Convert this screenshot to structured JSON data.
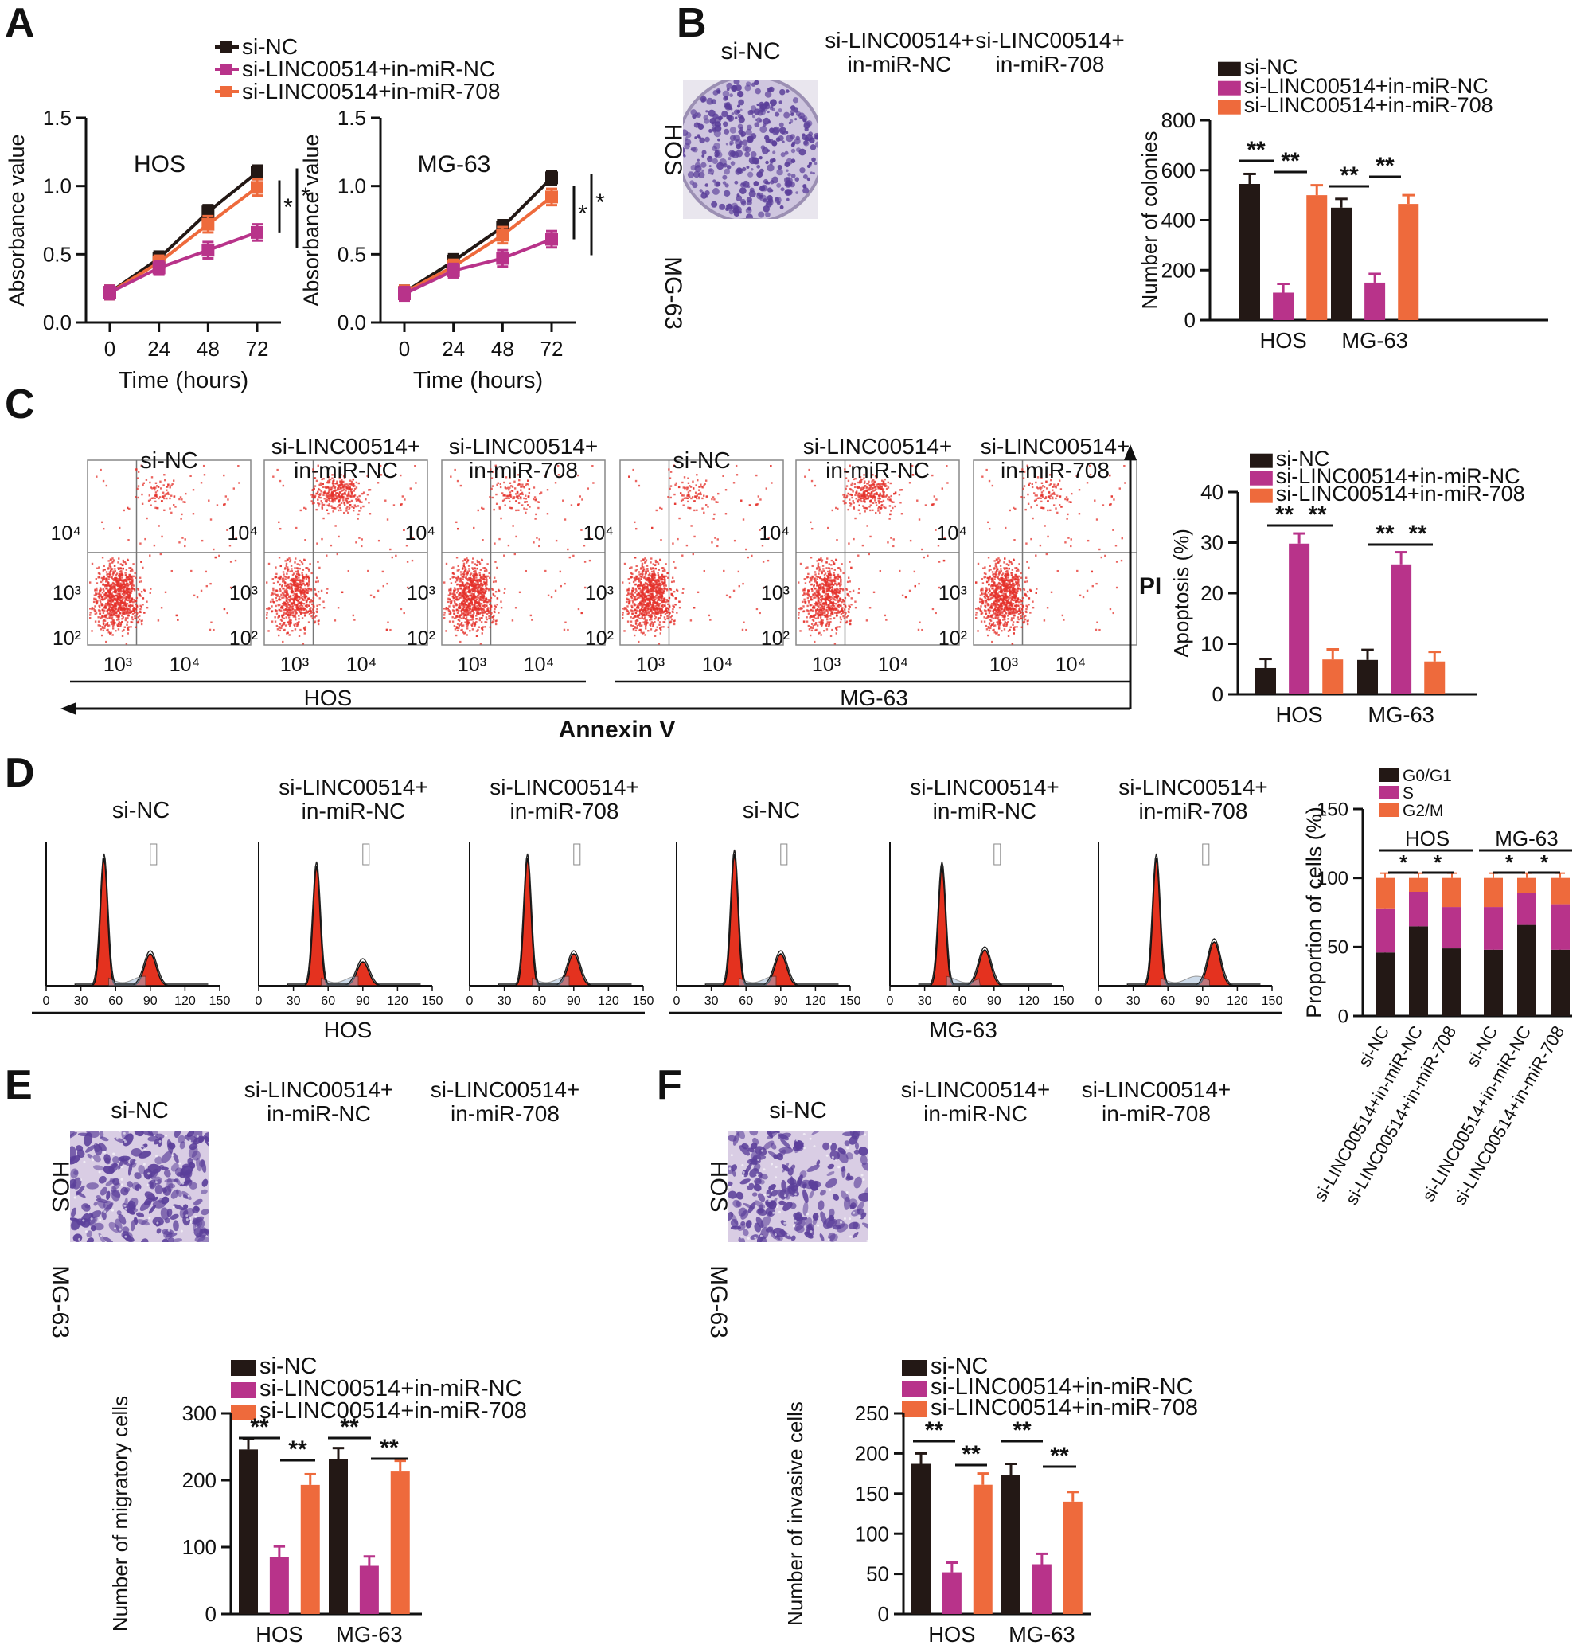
{
  "colors": {
    "si_nc": "#231815",
    "in_mir_nc": "#b8338a",
    "in_mir_708": "#ee6a3c",
    "flow_dots": "#e4322b",
    "hist_fill": "#e4321f",
    "stain_purple": "#5b3f9a",
    "stain_bg": "#d9cde4",
    "plate_bg": "#cfc6df"
  },
  "panels": {
    "A": "A",
    "B": "B",
    "C": "C",
    "D": "D",
    "E": "E",
    "F": "F"
  },
  "groups": {
    "si_nc": "si-NC",
    "si_mir_nc": "si-LINC00514+in-miR-NC",
    "si_mir_708": "si-LINC00514+in-miR-708",
    "si_mir_nc_l1": "si-LINC00514+",
    "si_mir_nc_l2": "in-miR-NC",
    "si_mir_708_l1": "si-LINC00514+",
    "si_mir_708_l2": "in-miR-708"
  },
  "cells": {
    "hos": "HOS",
    "mg63": "MG-63"
  },
  "sig": {
    "one": "*",
    "two": "**"
  },
  "flow": {
    "x_axis": "Annexin V",
    "y_axis": "PI",
    "tick_102": "10²",
    "tick_103": "10³",
    "tick_104": "10⁴"
  },
  "hist_ticks": [
    "0",
    "30",
    "60",
    "90",
    "120",
    "150"
  ],
  "chart_data": [
    {
      "id": "A-HOS",
      "type": "line",
      "title": "HOS",
      "xlabel": "Time (hours)",
      "ylabel": "Absorbance value",
      "x": [
        0,
        24,
        48,
        72
      ],
      "xticks": [
        "0",
        "24",
        "48",
        "72"
      ],
      "ylim": [
        0,
        1.5
      ],
      "yticks": [
        "0.0",
        "0.5",
        "1.0",
        "1.5"
      ],
      "series": [
        {
          "name": "si-NC",
          "values": [
            0.22,
            0.47,
            0.81,
            1.1
          ],
          "err": [
            0.05,
            0.05,
            0.05,
            0.05
          ]
        },
        {
          "name": "si-LINC00514+in-miR-NC",
          "values": [
            0.22,
            0.4,
            0.53,
            0.66
          ],
          "err": [
            0.05,
            0.05,
            0.06,
            0.06
          ]
        },
        {
          "name": "si-LINC00514+in-miR-708",
          "values": [
            0.22,
            0.44,
            0.72,
            0.99
          ],
          "err": [
            0.05,
            0.05,
            0.06,
            0.06
          ]
        }
      ]
    },
    {
      "id": "A-MG63",
      "type": "line",
      "title": "MG-63",
      "xlabel": "Time (hours)",
      "ylabel": "Absorbance value",
      "x": [
        0,
        24,
        48,
        72
      ],
      "xticks": [
        "0",
        "24",
        "48",
        "72"
      ],
      "ylim": [
        0,
        1.5
      ],
      "yticks": [
        "0.0",
        "0.5",
        "1.0",
        "1.5"
      ],
      "series": [
        {
          "name": "si-NC",
          "values": [
            0.22,
            0.45,
            0.7,
            1.06
          ],
          "err": [
            0.05,
            0.05,
            0.05,
            0.05
          ]
        },
        {
          "name": "si-LINC00514+in-miR-NC",
          "values": [
            0.21,
            0.38,
            0.47,
            0.61
          ],
          "err": [
            0.05,
            0.05,
            0.06,
            0.06
          ]
        },
        {
          "name": "si-LINC00514+in-miR-708",
          "values": [
            0.22,
            0.41,
            0.64,
            0.92
          ],
          "err": [
            0.05,
            0.05,
            0.06,
            0.06
          ]
        }
      ]
    },
    {
      "id": "B",
      "type": "bar",
      "categories": [
        "HOS",
        "MG-63"
      ],
      "ylabel": "Number of colonies",
      "ylim": [
        0,
        800
      ],
      "yticks": [
        "0",
        "200",
        "400",
        "600",
        "800"
      ],
      "series": [
        {
          "name": "si-NC",
          "values": [
            545,
            450
          ],
          "err": [
            40,
            35
          ]
        },
        {
          "name": "si-LINC00514+in-miR-NC",
          "values": [
            110,
            150
          ],
          "err": [
            35,
            35
          ]
        },
        {
          "name": "si-LINC00514+in-miR-708",
          "values": [
            500,
            465
          ],
          "err": [
            40,
            35
          ]
        }
      ]
    },
    {
      "id": "C",
      "type": "bar",
      "categories": [
        "HOS",
        "MG-63"
      ],
      "ylabel": "Apoptosis (%)",
      "ylim": [
        0,
        40
      ],
      "yticks": [
        "0",
        "10",
        "20",
        "30",
        "40"
      ],
      "series": [
        {
          "name": "si-NC",
          "values": [
            5.2,
            6.8
          ],
          "err": [
            1.8,
            2.0
          ]
        },
        {
          "name": "si-LINC00514+in-miR-NC",
          "values": [
            29.8,
            25.7
          ],
          "err": [
            2.0,
            2.4
          ]
        },
        {
          "name": "si-LINC00514+in-miR-708",
          "values": [
            6.9,
            6.5
          ],
          "err": [
            2.0,
            1.9
          ]
        }
      ]
    },
    {
      "id": "D",
      "type": "bar",
      "stacked": true,
      "categories": [
        "si-NC",
        "si-LINC00514+in-miR-NC",
        "si-LINC00514+in-miR-708",
        "si-NC",
        "si-LINC00514+in-miR-NC",
        "si-LINC00514+in-miR-708"
      ],
      "groups": [
        "HOS",
        "MG-63"
      ],
      "ylabel": "Proportion of cells (%)",
      "ylim": [
        0,
        150
      ],
      "yticks": [
        "0",
        "50",
        "100",
        "150"
      ],
      "series": [
        {
          "name": "G0/G1",
          "values": [
            46,
            65,
            49,
            48,
            66,
            48
          ]
        },
        {
          "name": "S",
          "values": [
            32,
            25,
            30,
            31,
            23,
            33
          ]
        },
        {
          "name": "G2/M",
          "values": [
            22,
            10,
            21,
            21,
            11,
            19
          ]
        }
      ]
    },
    {
      "id": "E",
      "type": "bar",
      "categories": [
        "HOS",
        "MG-63"
      ],
      "ylabel": "Number of migratory cells",
      "ylim": [
        0,
        300
      ],
      "yticks": [
        "0",
        "100",
        "200",
        "300"
      ],
      "series": [
        {
          "name": "si-NC",
          "values": [
            246,
            232
          ],
          "err": [
            16,
            16
          ]
        },
        {
          "name": "si-LINC00514+in-miR-NC",
          "values": [
            85,
            72
          ],
          "err": [
            16,
            14
          ]
        },
        {
          "name": "si-LINC00514+in-miR-708",
          "values": [
            193,
            213
          ],
          "err": [
            16,
            16
          ]
        }
      ]
    },
    {
      "id": "F",
      "type": "bar",
      "categories": [
        "HOS",
        "MG-63"
      ],
      "ylabel": "Number of invasive cells",
      "ylim": [
        0,
        250
      ],
      "yticks": [
        "0",
        "50",
        "100",
        "150",
        "200",
        "250"
      ],
      "series": [
        {
          "name": "si-NC",
          "values": [
            187,
            173
          ],
          "err": [
            13,
            14
          ]
        },
        {
          "name": "si-LINC00514+in-miR-NC",
          "values": [
            52,
            62
          ],
          "err": [
            12,
            13
          ]
        },
        {
          "name": "si-LINC00514+in-miR-708",
          "values": [
            161,
            140
          ],
          "err": [
            14,
            12
          ]
        }
      ]
    }
  ]
}
